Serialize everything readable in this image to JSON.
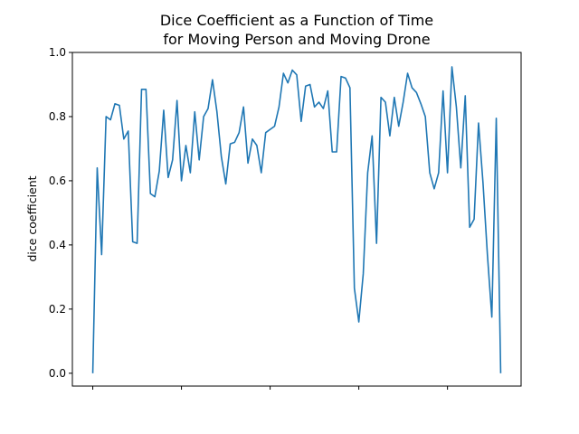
{
  "chart_data": {
    "type": "line",
    "title_line1": "Dice Coefficient as a Function of Time",
    "title_line2": "for Moving Person and Moving Drone",
    "xlabel": "",
    "ylabel": "dice coefficient",
    "ylim": [
      -0.04,
      1.0
    ],
    "xlim": [
      -4.6,
      96.6
    ],
    "yticks": [
      0.0,
      0.2,
      0.4,
      0.6,
      0.8,
      1.0
    ],
    "ytick_labels": [
      "0.0",
      "0.2",
      "0.4",
      "0.6",
      "0.8",
      "1.0"
    ],
    "xticks": [
      0,
      20,
      40,
      60,
      80
    ],
    "xtick_labels": [
      "",
      "",
      "",
      "",
      ""
    ],
    "grid": false,
    "legend": "none",
    "series": [
      {
        "color": "#1f77b4",
        "x": [
          0,
          1,
          2,
          3,
          4,
          5,
          6,
          7,
          8,
          9,
          10,
          11,
          12,
          13,
          14,
          15,
          16,
          17,
          18,
          19,
          20,
          21,
          22,
          23,
          24,
          25,
          26,
          27,
          28,
          29,
          30,
          31,
          32,
          33,
          34,
          35,
          36,
          37,
          38,
          39,
          40,
          41,
          42,
          43,
          44,
          45,
          46,
          47,
          48,
          49,
          50,
          51,
          52,
          53,
          54,
          55,
          56,
          57,
          58,
          59,
          60,
          61,
          62,
          63,
          64,
          65,
          66,
          67,
          68,
          69,
          70,
          71,
          72,
          73,
          74,
          75,
          76,
          77,
          78,
          79,
          80,
          81,
          82,
          83,
          84,
          85,
          86,
          87,
          88,
          89,
          90,
          91,
          92
        ],
        "y": [
          0.0,
          0.64,
          0.37,
          0.8,
          0.79,
          0.84,
          0.835,
          0.73,
          0.755,
          0.41,
          0.405,
          0.885,
          0.885,
          0.56,
          0.55,
          0.63,
          0.82,
          0.61,
          0.665,
          0.85,
          0.6,
          0.71,
          0.625,
          0.815,
          0.665,
          0.8,
          0.825,
          0.915,
          0.815,
          0.675,
          0.59,
          0.715,
          0.72,
          0.75,
          0.83,
          0.655,
          0.73,
          0.71,
          0.625,
          0.75,
          0.76,
          0.77,
          0.83,
          0.935,
          0.905,
          0.945,
          0.93,
          0.785,
          0.895,
          0.9,
          0.83,
          0.845,
          0.825,
          0.88,
          0.69,
          0.69,
          0.925,
          0.92,
          0.89,
          0.265,
          0.16,
          0.31,
          0.625,
          0.74,
          0.405,
          0.86,
          0.845,
          0.74,
          0.86,
          0.77,
          0.845,
          0.935,
          0.89,
          0.875,
          0.84,
          0.8,
          0.625,
          0.575,
          0.625,
          0.88,
          0.625,
          0.955,
          0.83,
          0.64,
          0.865,
          0.455,
          0.48,
          0.78,
          0.595,
          0.37,
          0.175,
          0.795,
          0.0
        ]
      }
    ]
  }
}
